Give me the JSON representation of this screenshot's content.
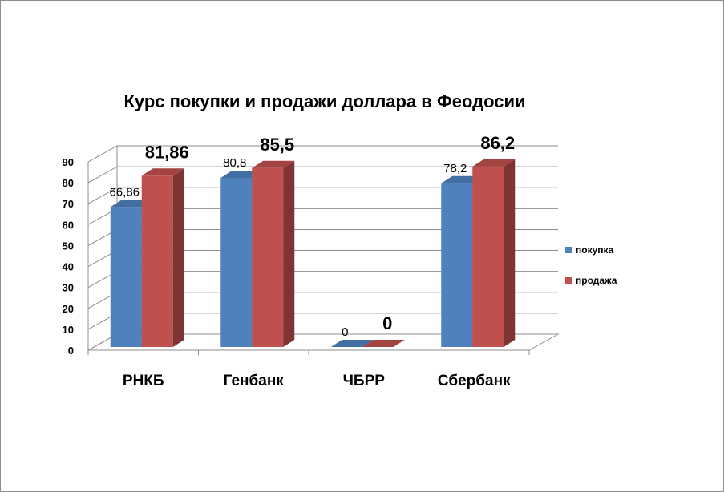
{
  "chart_data": {
    "type": "bar",
    "title": "Курс покупки и продажи доллара в Феодосии",
    "categories": [
      "РНКБ",
      "Генбанк",
      "ЧБРР",
      "Сбербанк"
    ],
    "series": [
      {
        "name": "покупка",
        "color": "#4f81bd",
        "values": [
          66.86,
          80.8,
          0,
          78.2
        ],
        "labels": [
          "66,86",
          "80,8",
          "0",
          "78,2"
        ]
      },
      {
        "name": "продажа",
        "color": "#c0504d",
        "values": [
          81.86,
          85.5,
          0,
          86.2
        ],
        "labels": [
          "81,86",
          "85,5",
          "0",
          "86,2"
        ]
      }
    ],
    "ylim": [
      0,
      90
    ],
    "yticks": [
      "0",
      "10",
      "20",
      "30",
      "40",
      "50",
      "60",
      "70",
      "80",
      "90"
    ],
    "grid": true,
    "legend_position": "right",
    "style": "3d-column"
  }
}
